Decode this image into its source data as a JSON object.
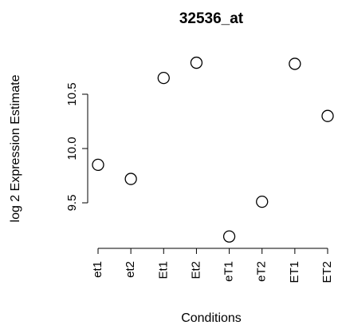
{
  "chart_data": {
    "type": "scatter",
    "title": "32536_at",
    "xlabel": "Conditions",
    "ylabel": "log 2 Expression Estimate",
    "categories": [
      "et1",
      "et2",
      "Et1",
      "Et2",
      "eT1",
      "eT2",
      "ET1",
      "ET2"
    ],
    "values": [
      9.85,
      9.72,
      10.65,
      10.79,
      9.19,
      9.51,
      10.78,
      10.3
    ],
    "yticks": [
      9.5,
      10.0,
      10.5
    ],
    "ytick_labels": [
      "9.5",
      "10.0",
      "10.5"
    ],
    "ylim": [
      9.19,
      10.79
    ],
    "grid": false,
    "legend": "none"
  }
}
